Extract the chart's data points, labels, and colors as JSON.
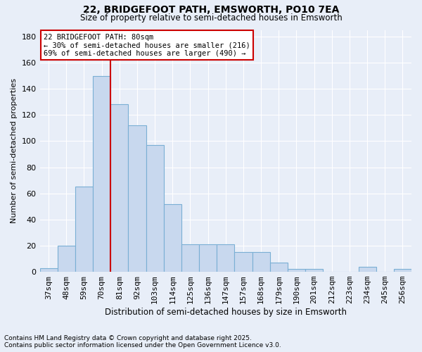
{
  "title1": "22, BRIDGEFOOT PATH, EMSWORTH, PO10 7EA",
  "title2": "Size of property relative to semi-detached houses in Emsworth",
  "xlabel": "Distribution of semi-detached houses by size in Emsworth",
  "ylabel": "Number of semi-detached properties",
  "categories": [
    "37sqm",
    "48sqm",
    "59sqm",
    "70sqm",
    "81sqm",
    "92sqm",
    "103sqm",
    "114sqm",
    "125sqm",
    "136sqm",
    "147sqm",
    "157sqm",
    "168sqm",
    "179sqm",
    "190sqm",
    "201sqm",
    "212sqm",
    "223sqm",
    "234sqm",
    "245sqm",
    "256sqm"
  ],
  "values": [
    3,
    20,
    65,
    150,
    128,
    112,
    97,
    52,
    21,
    21,
    21,
    15,
    15,
    7,
    2,
    2,
    0,
    0,
    4,
    0,
    2
  ],
  "bar_color": "#c8d8ee",
  "bar_edge_color": "#7aafd4",
  "vline_color": "#cc0000",
  "annotation_text": "22 BRIDGEFOOT PATH: 80sqm\n← 30% of semi-detached houses are smaller (216)\n69% of semi-detached houses are larger (490) →",
  "annotation_box_color": "#ffffff",
  "annotation_box_edge_color": "#cc0000",
  "footnote1": "Contains HM Land Registry data © Crown copyright and database right 2025.",
  "footnote2": "Contains public sector information licensed under the Open Government Licence v3.0.",
  "ylim": [
    0,
    185
  ],
  "yticks": [
    0,
    20,
    40,
    60,
    80,
    100,
    120,
    140,
    160,
    180
  ],
  "background_color": "#e8eef8",
  "grid_color": "#ffffff"
}
